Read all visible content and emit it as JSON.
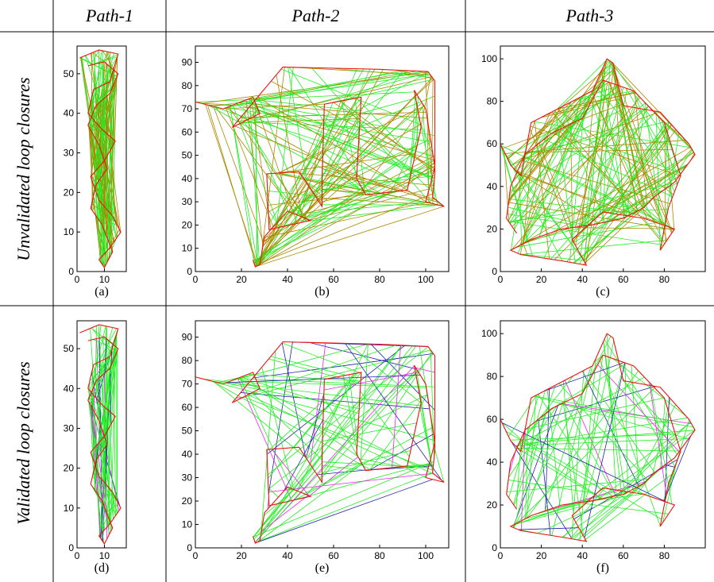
{
  "columns": [
    "Path-1",
    "Path-2",
    "Path-3"
  ],
  "rows": [
    "Unvalidated loop closures",
    "Validated loop closures"
  ],
  "colors": {
    "trajectory": "#ee1111",
    "loop_green": "#22ee22",
    "loop_olive": "#aa8800",
    "validated_blue": "#2222aa",
    "highlight_magenta": "#ee22ee"
  },
  "chart_data": [
    {
      "type": "scatter",
      "panel_label": "(a)",
      "column": "Path-1",
      "row": "Unvalidated loop closures",
      "xlim": [
        0,
        18
      ],
      "ylim": [
        0,
        57
      ],
      "xticks": [
        0,
        10
      ],
      "yticks": [
        0,
        10,
        20,
        30,
        40,
        50
      ],
      "series": [
        {
          "values": "trajectory"
        },
        {
          "values": "loop-closures"
        }
      ]
    },
    {
      "type": "scatter",
      "panel_label": "(b)",
      "column": "Path-2",
      "row": "Unvalidated loop closures",
      "xlim": [
        0,
        110
      ],
      "ylim": [
        0,
        97
      ],
      "xticks": [
        0,
        20,
        40,
        60,
        80,
        100
      ],
      "yticks": [
        0,
        10,
        20,
        30,
        40,
        50,
        60,
        70,
        80,
        90
      ]
    },
    {
      "type": "scatter",
      "panel_label": "(c)",
      "column": "Path-3",
      "row": "Unvalidated loop closures",
      "xlim": [
        0,
        100
      ],
      "ylim": [
        0,
        106
      ],
      "xticks": [
        0,
        20,
        40,
        60,
        80
      ],
      "yticks": [
        0,
        20,
        40,
        60,
        80,
        100
      ]
    },
    {
      "type": "scatter",
      "panel_label": "(d)",
      "column": "Path-1",
      "row": "Validated loop closures",
      "xlim": [
        0,
        18
      ],
      "ylim": [
        0,
        57
      ],
      "xticks": [
        0,
        10
      ],
      "yticks": [
        0,
        10,
        20,
        30,
        40,
        50
      ]
    },
    {
      "type": "scatter",
      "panel_label": "(e)",
      "column": "Path-2",
      "row": "Validated loop closures",
      "xlim": [
        0,
        110
      ],
      "ylim": [
        0,
        97
      ],
      "xticks": [
        0,
        20,
        40,
        60,
        80,
        100
      ],
      "yticks": [
        0,
        10,
        20,
        30,
        40,
        50,
        60,
        70,
        80,
        90
      ]
    },
    {
      "type": "scatter",
      "panel_label": "(f)",
      "column": "Path-3",
      "row": "Validated loop closures",
      "xlim": [
        0,
        100
      ],
      "ylim": [
        0,
        106
      ],
      "xticks": [
        0,
        20,
        40,
        60,
        80
      ],
      "yticks": [
        0,
        20,
        40,
        60,
        80,
        100
      ]
    }
  ]
}
